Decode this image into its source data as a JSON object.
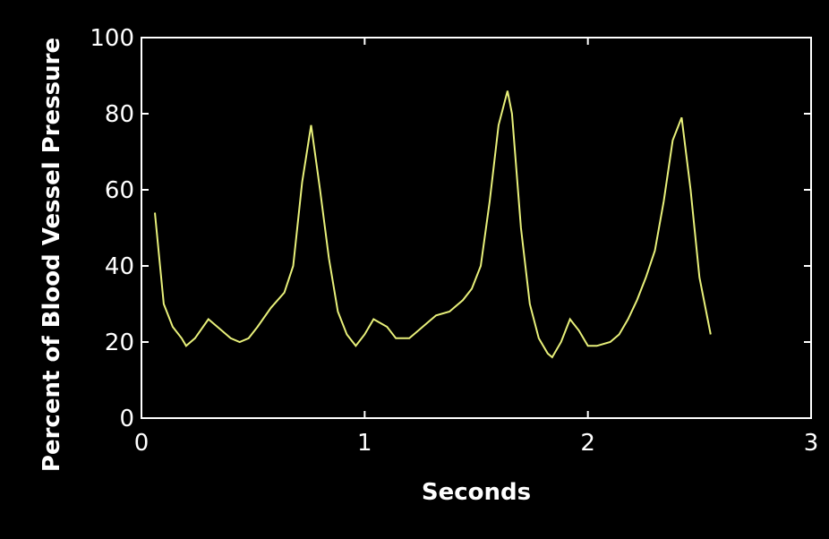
{
  "chart_data": {
    "type": "line",
    "title": "",
    "xlabel": "Seconds",
    "ylabel": "Percent of Blood Vessel Pressure",
    "xlim": [
      0,
      3
    ],
    "ylim": [
      0,
      100
    ],
    "xticks": [
      0,
      1,
      2,
      3
    ],
    "yticks": [
      0,
      20,
      40,
      60,
      80,
      100
    ],
    "grid": false,
    "legend": "none",
    "colors": {
      "background": "#000000",
      "axis": "#ffffff",
      "line": "#e8f07a"
    },
    "series": [
      {
        "x": [
          0.06,
          0.1,
          0.14,
          0.18,
          0.2,
          0.24,
          0.3,
          0.34,
          0.4,
          0.44,
          0.48,
          0.52,
          0.58,
          0.64,
          0.68,
          0.72,
          0.76,
          0.8,
          0.84,
          0.88,
          0.92,
          0.96,
          1.0,
          1.04,
          1.1,
          1.14,
          1.2,
          1.24,
          1.28,
          1.32,
          1.38,
          1.44,
          1.48,
          1.52,
          1.56,
          1.6,
          1.64,
          1.66,
          1.7,
          1.74,
          1.78,
          1.82,
          1.84,
          1.88,
          1.92,
          1.96,
          2.0,
          2.04,
          2.1,
          2.14,
          2.18,
          2.22,
          2.26,
          2.3,
          2.34,
          2.38,
          2.42,
          2.46,
          2.5,
          2.55
        ],
        "y": [
          54,
          30,
          24,
          21,
          19,
          21,
          26,
          24,
          21,
          20,
          21,
          24,
          29,
          33,
          40,
          62,
          77,
          60,
          42,
          28,
          22,
          19,
          22,
          26,
          24,
          21,
          21,
          23,
          25,
          27,
          28,
          31,
          34,
          40,
          57,
          77,
          86,
          80,
          50,
          30,
          21,
          17,
          16,
          20,
          26,
          23,
          19,
          19,
          20,
          22,
          26,
          31,
          37,
          44,
          57,
          73,
          79,
          60,
          37,
          22
        ]
      }
    ]
  }
}
